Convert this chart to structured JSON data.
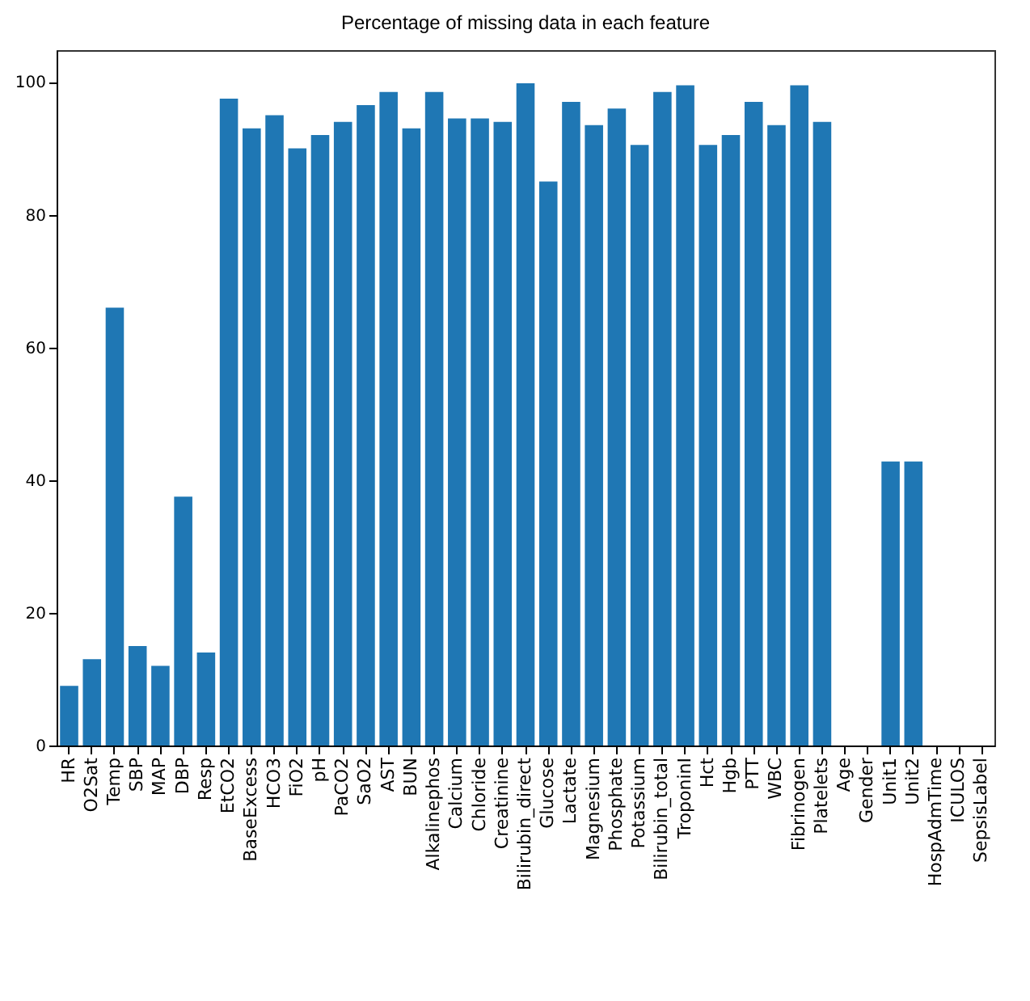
{
  "chart_data": {
    "type": "bar",
    "title": "Percentage of missing data in each feature",
    "categories": [
      "HR",
      "O2Sat",
      "Temp",
      "SBP",
      "MAP",
      "DBP",
      "Resp",
      "EtCO2",
      "BaseExcess",
      "HCO3",
      "FiO2",
      "pH",
      "PaCO2",
      "SaO2",
      "AST",
      "BUN",
      "Alkalinephos",
      "Calcium",
      "Chloride",
      "Creatinine",
      "Bilirubin_direct",
      "Glucose",
      "Lactate",
      "Magnesium",
      "Phosphate",
      "Potassium",
      "Bilirubin_total",
      "TroponinI",
      "Hct",
      "Hgb",
      "PTT",
      "WBC",
      "Fibrinogen",
      "Platelets",
      "Age",
      "Gender",
      "Unit1",
      "Unit2",
      "HospAdmTime",
      "ICULOS",
      "SepsisLabel"
    ],
    "values": [
      9,
      13,
      66,
      15,
      12,
      37.5,
      14,
      97.5,
      93,
      95,
      90,
      92,
      94,
      96.5,
      98.5,
      93,
      98.5,
      94.5,
      94.5,
      94,
      99.8,
      85,
      97,
      93.5,
      96,
      90.5,
      98.5,
      99.5,
      90.5,
      92,
      97,
      93.5,
      99.5,
      94,
      0,
      0,
      42.8,
      42.8,
      0,
      0,
      0
    ],
    "color": "#1f77b4",
    "ylim": [
      0,
      104.8
    ],
    "yticks": [
      0,
      20,
      40,
      60,
      80,
      100
    ],
    "grid": false
  }
}
